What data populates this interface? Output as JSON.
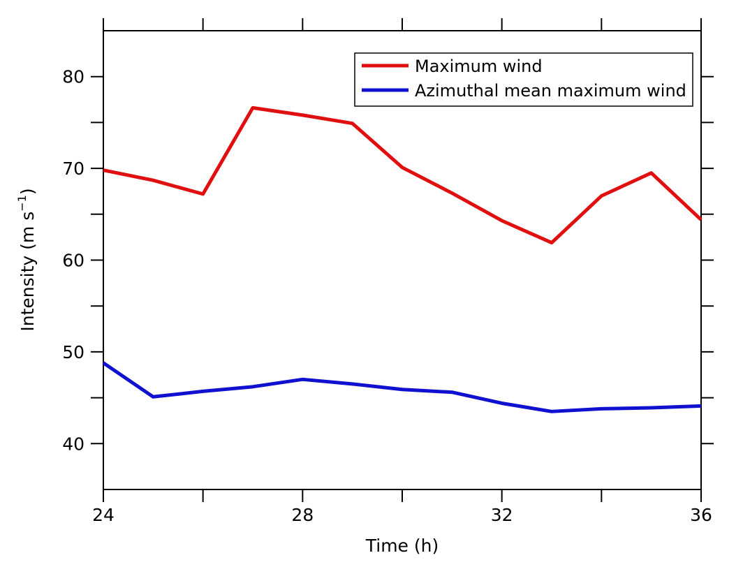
{
  "chart_data": {
    "type": "line",
    "title": "",
    "xlabel": "Time (h)",
    "ylabel_main": "Intensity (m s",
    "ylabel_sup": "−1",
    "ylabel_close": ")",
    "xlim": [
      24,
      36
    ],
    "ylim": [
      35,
      85
    ],
    "xticks": [
      24,
      28,
      32,
      36
    ],
    "xminor_ticks": [
      26,
      30,
      34
    ],
    "yticks": [
      40,
      50,
      60,
      70,
      80
    ],
    "yminor_ticks": [
      45,
      55,
      65,
      75
    ],
    "grid": false,
    "legend_position": "top-right",
    "x": [
      24,
      25,
      26,
      27,
      28,
      29,
      30,
      31,
      32,
      33,
      34,
      35,
      36
    ],
    "series": [
      {
        "name": "Maximum wind",
        "color": "#e01010",
        "values": [
          69.8,
          68.7,
          67.2,
          76.6,
          75.8,
          74.9,
          70.1,
          67.3,
          64.3,
          61.9,
          67.0,
          69.5,
          64.4
        ]
      },
      {
        "name": "Azimuthal mean maximum wind",
        "color": "#1010d0",
        "values": [
          48.8,
          45.1,
          45.7,
          46.2,
          47.0,
          46.5,
          45.9,
          45.6,
          44.4,
          43.5,
          43.8,
          43.9,
          44.1
        ]
      }
    ]
  }
}
